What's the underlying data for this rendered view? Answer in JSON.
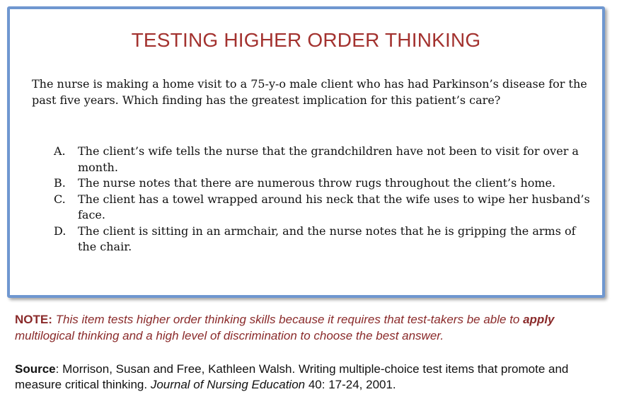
{
  "card": {
    "title": "TESTING HIGHER ORDER THINKING",
    "stem": "The nurse is making a home visit to a 75-y-o male client who has had Parkinson’s disease for the past five years. Which finding has the greatest implication for this patient’s care?",
    "options": [
      {
        "letter": "A.",
        "text": "The client’s wife tells the nurse that the grandchildren have not been to visit for over a month."
      },
      {
        "letter": "B.",
        "text": "The nurse notes that there are numerous throw rugs throughout the client’s home."
      },
      {
        "letter": "C.",
        "text": "The client has a towel wrapped around his neck that the wife uses to wipe her husband’s face."
      },
      {
        "letter": "D.",
        "text": "The client is sitting in an armchair, and the nurse notes that he is gripping the arms of the chair."
      }
    ]
  },
  "note": {
    "label": "NOTE:",
    "text_before": " This item tests higher order thinking skills because it requires that test-takers be able to ",
    "emphasis": "apply",
    "text_after": " multilogical thinking and a high level of discrimination to choose the best answer."
  },
  "source": {
    "label": "Source",
    "text_before": ": Morrison, Susan and Free, Kathleen Walsh. Writing multiple-choice test items that promote and measure critical thinking. ",
    "journal": "Journal of Nursing Education",
    "text_after": " 40: 17-24, 2001."
  },
  "colors": {
    "title": "#a3322f",
    "note": "#8a2a2a",
    "card_border": "#6f97d0"
  }
}
